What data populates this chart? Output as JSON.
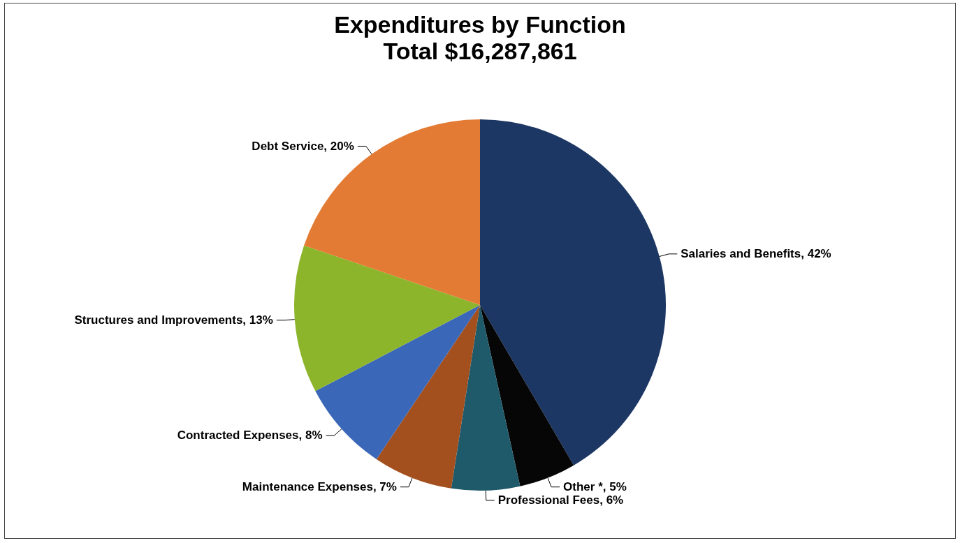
{
  "chart_data": {
    "type": "pie",
    "title": "Expenditures by Function",
    "subtitle": "Total $16,287,861",
    "categories": [
      "Salaries and Benefits",
      "Other *",
      "Professional Fees",
      "Maintenance Expenses",
      "Contracted Expenses",
      "Structures and Improvements",
      "Debt Service"
    ],
    "values": [
      42,
      5,
      6,
      7,
      8,
      13,
      20
    ],
    "value_labels": [
      "42%",
      "5%",
      "6%",
      "7%",
      "8%",
      "13%",
      "20%"
    ],
    "colors": [
      "#1d3764",
      "#060606",
      "#1f5a6a",
      "#a4501e",
      "#3b67b9",
      "#8cb52b",
      "#e47b34"
    ],
    "legend": false
  }
}
